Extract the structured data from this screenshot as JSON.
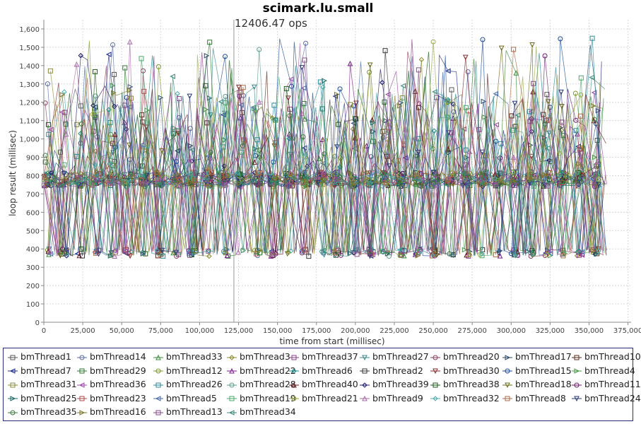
{
  "chart_data": {
    "type": "line",
    "title": "scimark.lu.small",
    "annotation": "12406.47 ops",
    "annotation_marker_x": 122000,
    "xlabel": "time from start (millisec)",
    "ylabel": "loop result (millisec)",
    "xlim": [
      0,
      377000
    ],
    "ylim": [
      0,
      1650
    ],
    "x_ticks": [
      0,
      25000,
      50000,
      75000,
      100000,
      125000,
      150000,
      175000,
      200000,
      225000,
      250000,
      275000,
      300000,
      325000,
      350000,
      375000
    ],
    "x_tick_labels": [
      "0",
      "25,000",
      "50,000",
      "75,000",
      "100,000",
      "125,000",
      "150,000",
      "175,000",
      "200,000",
      "225,000",
      "250,000",
      "275,000",
      "300,000",
      "325,000",
      "350,000",
      "375,000"
    ],
    "y_ticks": [
      0,
      100,
      200,
      300,
      400,
      500,
      600,
      700,
      800,
      900,
      1000,
      1100,
      1200,
      1300,
      1400,
      1500,
      1600
    ],
    "y_tick_labels": [
      "0",
      "100",
      "200",
      "300",
      "400",
      "500",
      "600",
      "700",
      "800",
      "900",
      "1,000",
      "1,100",
      "1,200",
      "1,300",
      "1,400",
      "1,500",
      "1,600"
    ],
    "grid": true,
    "legend_position": "bottom",
    "x_range_data": [
      0,
      362000
    ],
    "y_band_levels": [
      380,
      760,
      800,
      1050
    ],
    "series": [
      {
        "name": "bmThread1",
        "color": "#555555",
        "marker": "square"
      },
      {
        "name": "bmThread14",
        "color": "#5a6aa8",
        "marker": "circle"
      },
      {
        "name": "bmThread33",
        "color": "#3a8a3a",
        "marker": "triangle-up"
      },
      {
        "name": "bmThread3",
        "color": "#8a8a2a",
        "marker": "diamond"
      },
      {
        "name": "bmThread37",
        "color": "#8a3a8a",
        "marker": "square"
      },
      {
        "name": "bmThread27",
        "color": "#3a8a8a",
        "marker": "triangle-down"
      },
      {
        "name": "bmThread20",
        "color": "#8a3a5a",
        "marker": "circle"
      },
      {
        "name": "bmThread17",
        "color": "#2a4a6a",
        "marker": "triangle-right"
      },
      {
        "name": "bmThread10",
        "color": "#5a2a1a",
        "marker": "square"
      },
      {
        "name": "bmThread7",
        "color": "#1a2a8a",
        "marker": "triangle-left"
      },
      {
        "name": "bmThread29",
        "color": "#2a7a2a",
        "marker": "square"
      },
      {
        "name": "bmThread12",
        "color": "#7a9a2a",
        "marker": "circle"
      },
      {
        "name": "bmThread22",
        "color": "#7a1a8a",
        "marker": "triangle-up"
      },
      {
        "name": "bmThread6",
        "color": "#1a8a8a",
        "marker": "diamond"
      },
      {
        "name": "bmThread2",
        "color": "#333333",
        "marker": "square"
      },
      {
        "name": "bmThread30",
        "color": "#8a2a2a",
        "marker": "triangle-down"
      },
      {
        "name": "bmThread15",
        "color": "#1a4a9a",
        "marker": "circle"
      },
      {
        "name": "bmThread4",
        "color": "#4a9a4a",
        "marker": "triangle-right"
      },
      {
        "name": "bmThread31",
        "color": "#8a8a3a",
        "marker": "square"
      },
      {
        "name": "bmThread36",
        "color": "#9a4aaa",
        "marker": "triangle-left"
      },
      {
        "name": "bmThread26",
        "color": "#2a8a9a",
        "marker": "square"
      },
      {
        "name": "bmThread28",
        "color": "#5a9a8a",
        "marker": "circle"
      },
      {
        "name": "bmThread40",
        "color": "#6a1a1a",
        "marker": "triangle-up"
      },
      {
        "name": "bmThread39",
        "color": "#1a1a6a",
        "marker": "diamond"
      },
      {
        "name": "bmThread38",
        "color": "#1a5a1a",
        "marker": "square"
      },
      {
        "name": "bmThread18",
        "color": "#6a6a1a",
        "marker": "triangle-down"
      },
      {
        "name": "bmThread11",
        "color": "#6a1a6a",
        "marker": "circle"
      },
      {
        "name": "bmThread25",
        "color": "#1a6a6a",
        "marker": "triangle-right"
      },
      {
        "name": "bmThread23",
        "color": "#aa4a4a",
        "marker": "square"
      },
      {
        "name": "bmThread5",
        "color": "#4a6aaa",
        "marker": "triangle-left"
      },
      {
        "name": "bmThread19",
        "color": "#4aaa6a",
        "marker": "square"
      },
      {
        "name": "bmThread21",
        "color": "#9aaa4a",
        "marker": "circle"
      },
      {
        "name": "bmThread9",
        "color": "#aa6aaa",
        "marker": "triangle-up"
      },
      {
        "name": "bmThread32",
        "color": "#4aaaaa",
        "marker": "diamond"
      },
      {
        "name": "bmThread8",
        "color": "#aa6a4a",
        "marker": "square"
      },
      {
        "name": "bmThread24",
        "color": "#2a3a7a",
        "marker": "triangle-down"
      },
      {
        "name": "bmThread35",
        "color": "#3a7a3a",
        "marker": "circle"
      },
      {
        "name": "bmThread16",
        "color": "#7a7a2a",
        "marker": "triangle-right"
      },
      {
        "name": "bmThread13",
        "color": "#8a4a8a",
        "marker": "square"
      },
      {
        "name": "bmThread34",
        "color": "#3a8a7a",
        "marker": "triangle-left"
      }
    ]
  }
}
